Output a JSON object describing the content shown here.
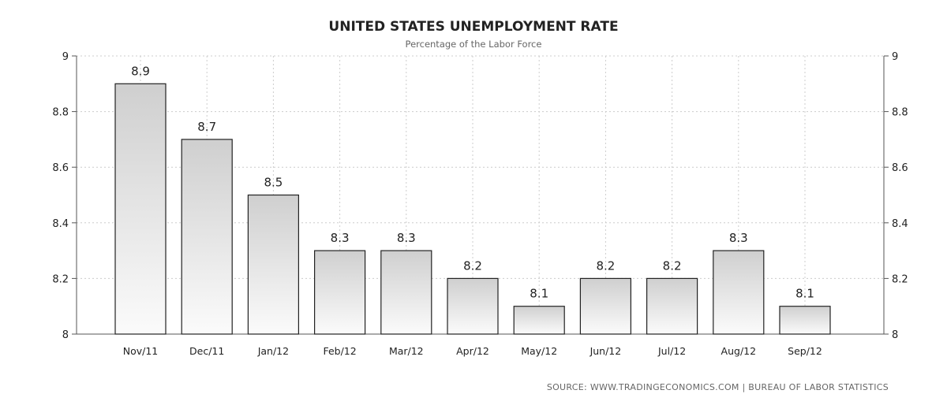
{
  "chart_data": {
    "type": "bar",
    "title": "UNITED STATES UNEMPLOYMENT RATE",
    "subtitle": "Percentage of the Labor Force",
    "categories": [
      "Nov/11",
      "Dec/11",
      "Jan/12",
      "Feb/12",
      "Mar/12",
      "Apr/12",
      "May/12",
      "Jun/12",
      "Jul/12",
      "Aug/12",
      "Sep/12"
    ],
    "values": [
      8.9,
      8.7,
      8.5,
      8.3,
      8.3,
      8.2,
      8.1,
      8.2,
      8.2,
      8.3,
      8.1
    ],
    "data_labels": [
      "8.9",
      "8.7",
      "8.5",
      "8.3",
      "8.3",
      "8.2",
      "8.1",
      "8.2",
      "8.2",
      "8.3",
      "8.1"
    ],
    "ylim": [
      8,
      9
    ],
    "y_ticks": [
      8,
      8.2,
      8.4,
      8.6,
      8.8,
      9
    ],
    "y_tick_labels": [
      "8",
      "8.2",
      "8.4",
      "8.6",
      "8.8",
      "9"
    ],
    "xlabel": "",
    "ylabel": "",
    "grid": true,
    "y_axis_both_sides": true,
    "source": "SOURCE: WWW.TRADINGECONOMICS.COM | BUREAU OF LABOR STATISTICS",
    "colors": {
      "bar_top": "#cfcfcf",
      "bar_bottom": "#fbfbfb",
      "bar_stroke": "#222222",
      "grid": "#cccccc",
      "axis": "#555555"
    }
  }
}
